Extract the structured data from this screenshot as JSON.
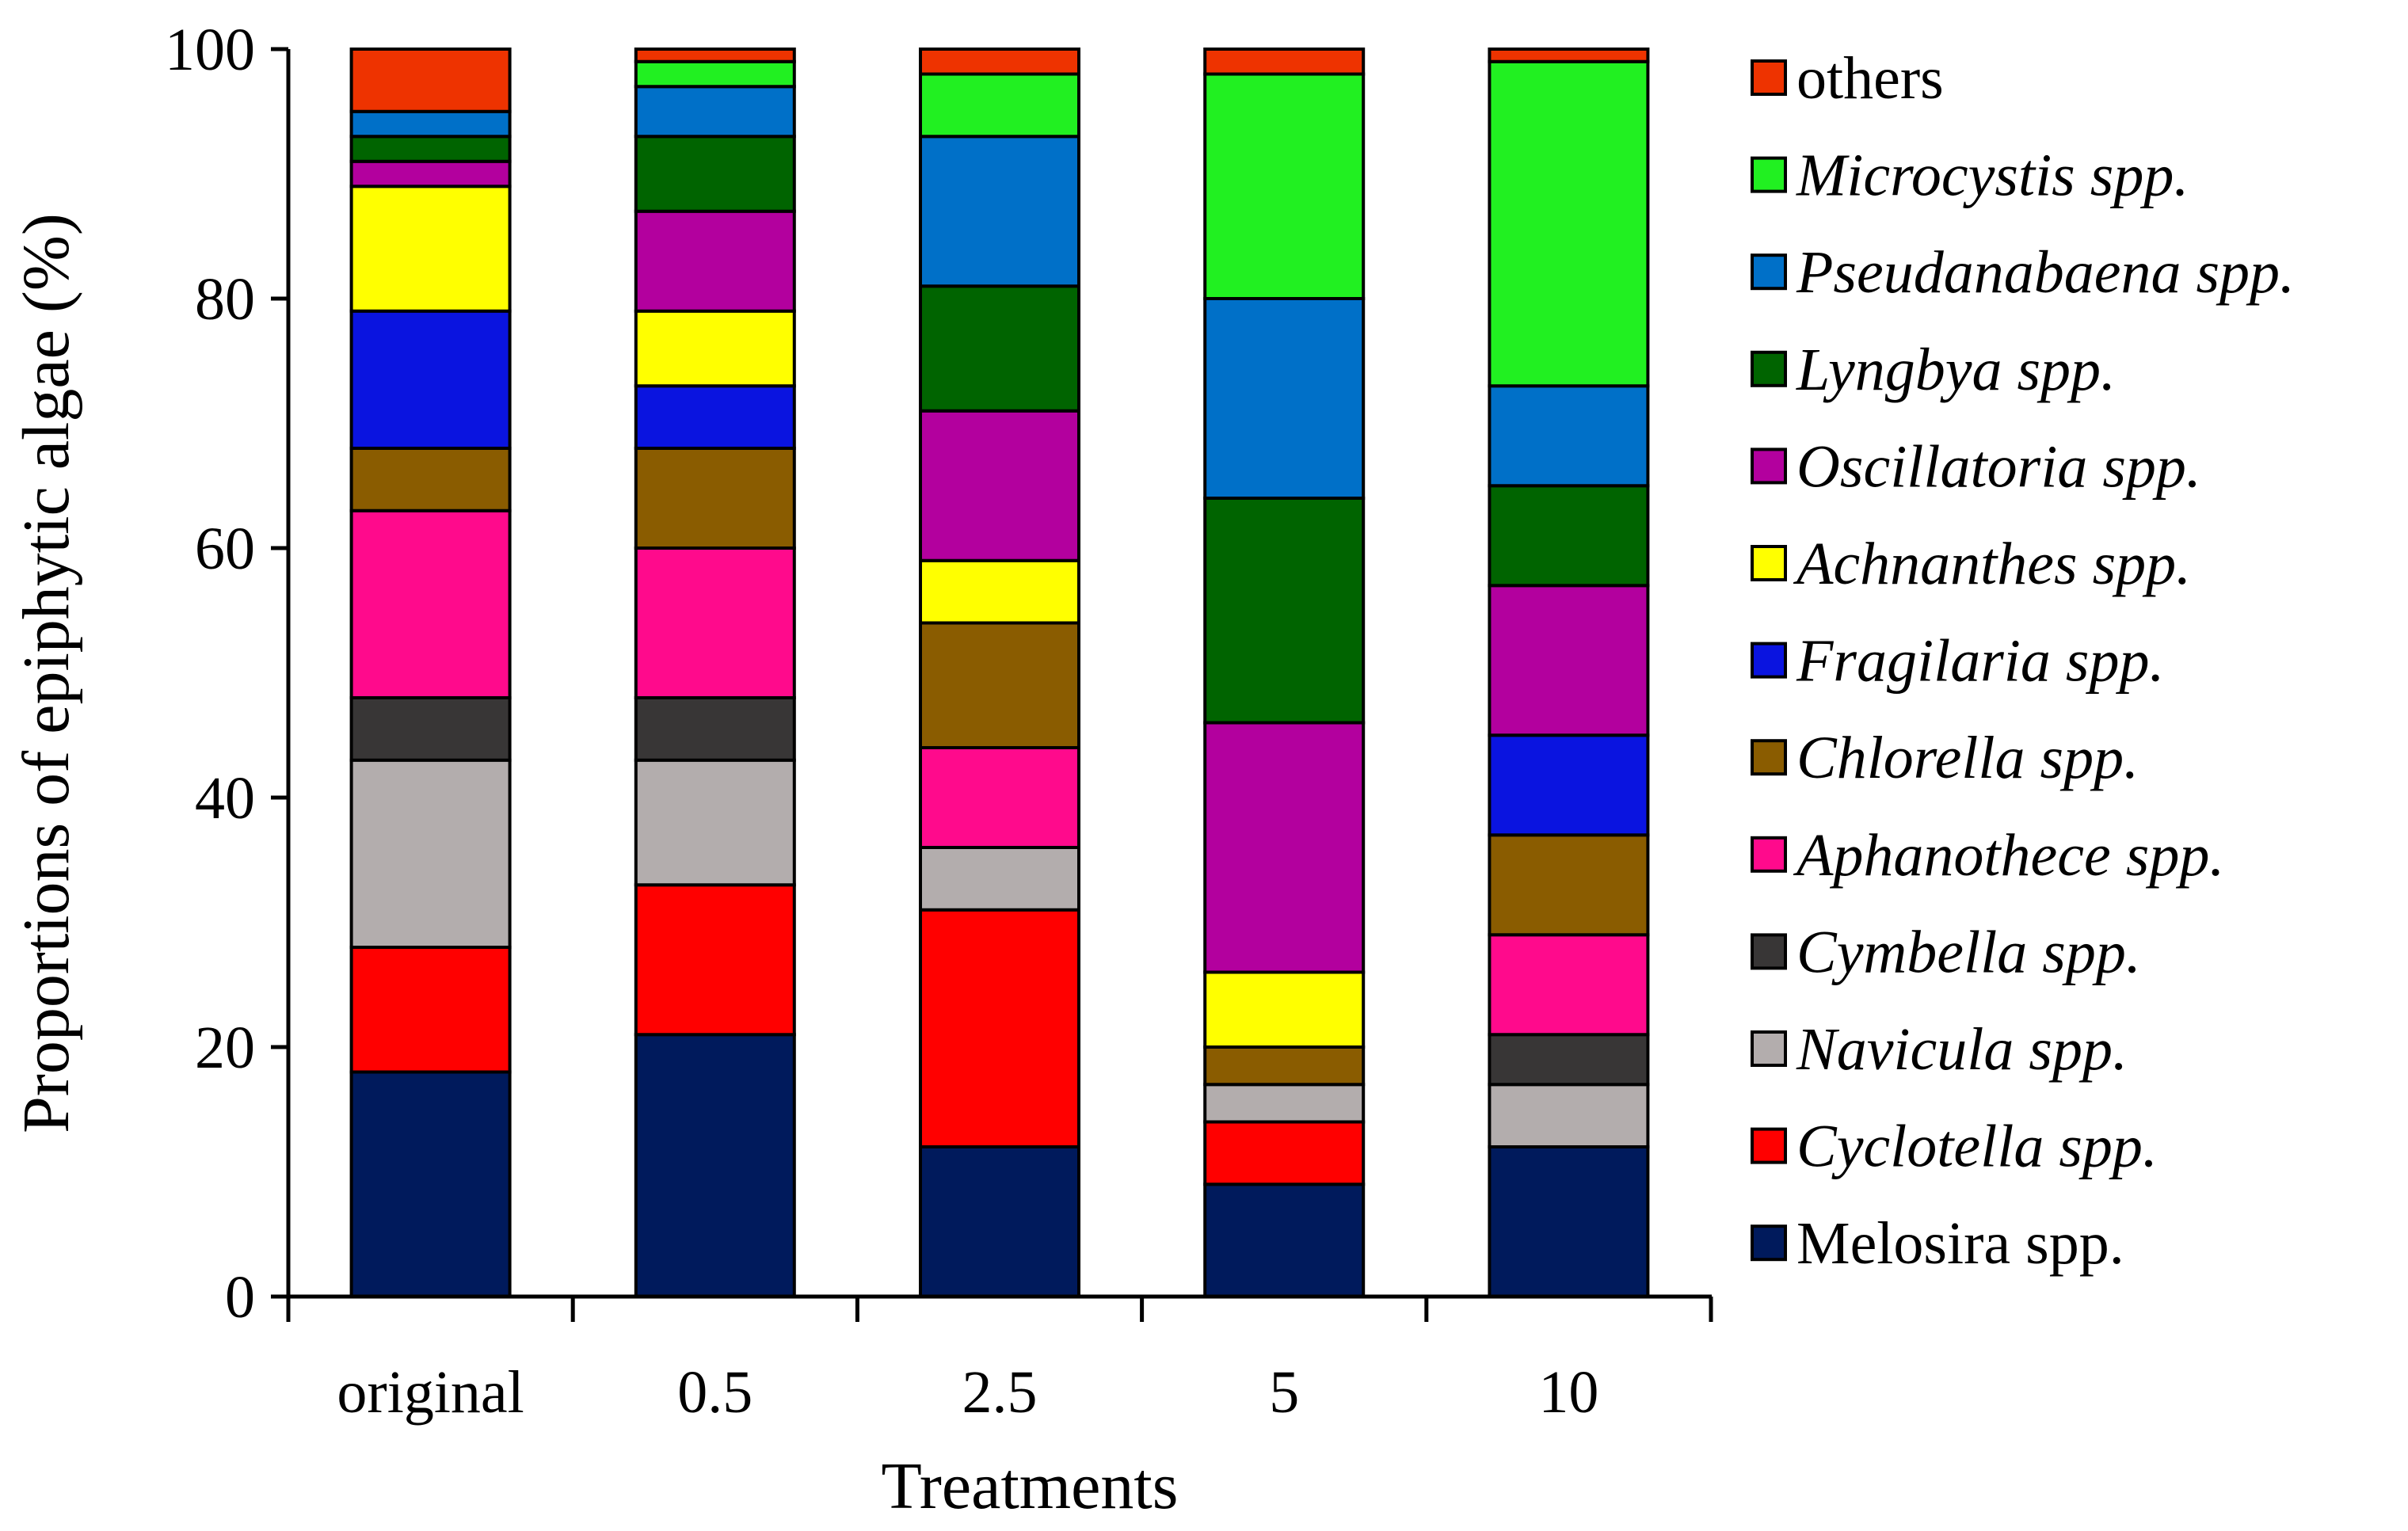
{
  "chart_data": {
    "type": "bar",
    "stacked": true,
    "title": "",
    "xlabel": "Treatments",
    "ylabel": "Proportions of epiphytic algae (%)",
    "ylim": [
      0,
      100
    ],
    "yticks": [
      0,
      20,
      40,
      60,
      80,
      100
    ],
    "categories": [
      "original",
      "0.5",
      "2.5",
      "5",
      "10"
    ],
    "legend_position": "right",
    "series": [
      {
        "name": "Melosira spp.",
        "italic": false,
        "color": "#001a5c",
        "values": [
          18,
          21,
          12,
          9,
          12
        ]
      },
      {
        "name": "Cyclotella spp.",
        "italic": true,
        "color": "#ff0000",
        "values": [
          10,
          12,
          19,
          5,
          0
        ]
      },
      {
        "name": "Navicula spp.",
        "italic": true,
        "color": "#b3adad",
        "values": [
          15,
          10,
          5,
          3,
          5
        ]
      },
      {
        "name": "Cymbella spp.",
        "italic": true,
        "color": "#383636",
        "values": [
          5,
          5,
          0,
          0,
          4
        ]
      },
      {
        "name": "Aphanothece spp.",
        "italic": true,
        "color": "#ff0a8c",
        "values": [
          15,
          12,
          8,
          0,
          8
        ]
      },
      {
        "name": "Chlorella spp.",
        "italic": true,
        "color": "#8a5c00",
        "values": [
          5,
          8,
          10,
          3,
          8
        ]
      },
      {
        "name": "Fragilaria spp.",
        "italic": true,
        "color": "#0a14e0",
        "values": [
          11,
          5,
          0,
          0,
          8
        ]
      },
      {
        "name": "Achnanthes spp.",
        "italic": true,
        "color": "#ffff00",
        "values": [
          10,
          6,
          5,
          6,
          0
        ]
      },
      {
        "name": "Oscillatoria spp.",
        "italic": true,
        "color": "#b3009e",
        "values": [
          2,
          8,
          12,
          20,
          12
        ]
      },
      {
        "name": "Lyngbya spp.",
        "italic": true,
        "color": "#006400",
        "values": [
          2,
          6,
          10,
          18,
          8
        ]
      },
      {
        "name": "Pseudanabaena spp.",
        "italic": true,
        "color": "#0070c8",
        "values": [
          2,
          4,
          12,
          16,
          8
        ]
      },
      {
        "name": "Microcystis spp.",
        "italic": true,
        "color": "#21f021",
        "values": [
          0,
          2,
          5,
          18,
          26
        ]
      },
      {
        "name": "others",
        "italic": false,
        "color": "#ee3300",
        "values": [
          5,
          1,
          2,
          2,
          1
        ]
      }
    ]
  }
}
